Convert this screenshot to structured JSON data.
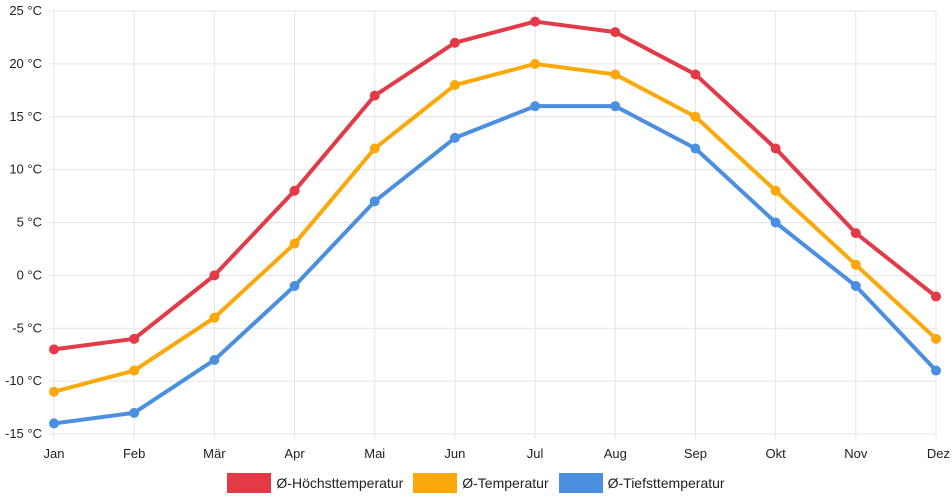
{
  "chart_data": {
    "type": "line",
    "categories": [
      "Jan",
      "Feb",
      "Mär",
      "Apr",
      "Mai",
      "Jun",
      "Jul",
      "Aug",
      "Sep",
      "Okt",
      "Nov",
      "Dez"
    ],
    "y_ticks": [
      {
        "value": 25,
        "label": "25 °C"
      },
      {
        "value": 20,
        "label": "20 °C"
      },
      {
        "value": 15,
        "label": "15 °C"
      },
      {
        "value": 10,
        "label": "10 °C"
      },
      {
        "value": 5,
        "label": "5 °C"
      },
      {
        "value": 0,
        "label": "0 °C"
      },
      {
        "value": -5,
        "label": "-5 °C"
      },
      {
        "value": -10,
        "label": "-10 °C"
      },
      {
        "value": -15,
        "label": "-15 °C"
      }
    ],
    "ylim": [
      -15,
      25
    ],
    "grid": true,
    "legend_position": "bottom",
    "series": [
      {
        "name": "Ø-Höchsttemperatur",
        "color": "#e23a46",
        "values": [
          -7,
          -6,
          0,
          8,
          17,
          22,
          24,
          23,
          19,
          12,
          4,
          -2
        ]
      },
      {
        "name": "Ø-Temperatur",
        "color": "#fca80a",
        "values": [
          -11,
          -9,
          -4,
          3,
          12,
          18,
          20,
          19,
          15,
          8,
          1,
          -6
        ]
      },
      {
        "name": "Ø-Tiefsttemperatur",
        "color": "#4a8fe0",
        "values": [
          -14,
          -13,
          -8,
          -1,
          7,
          13,
          16,
          16,
          12,
          5,
          -1,
          -9
        ]
      }
    ]
  }
}
